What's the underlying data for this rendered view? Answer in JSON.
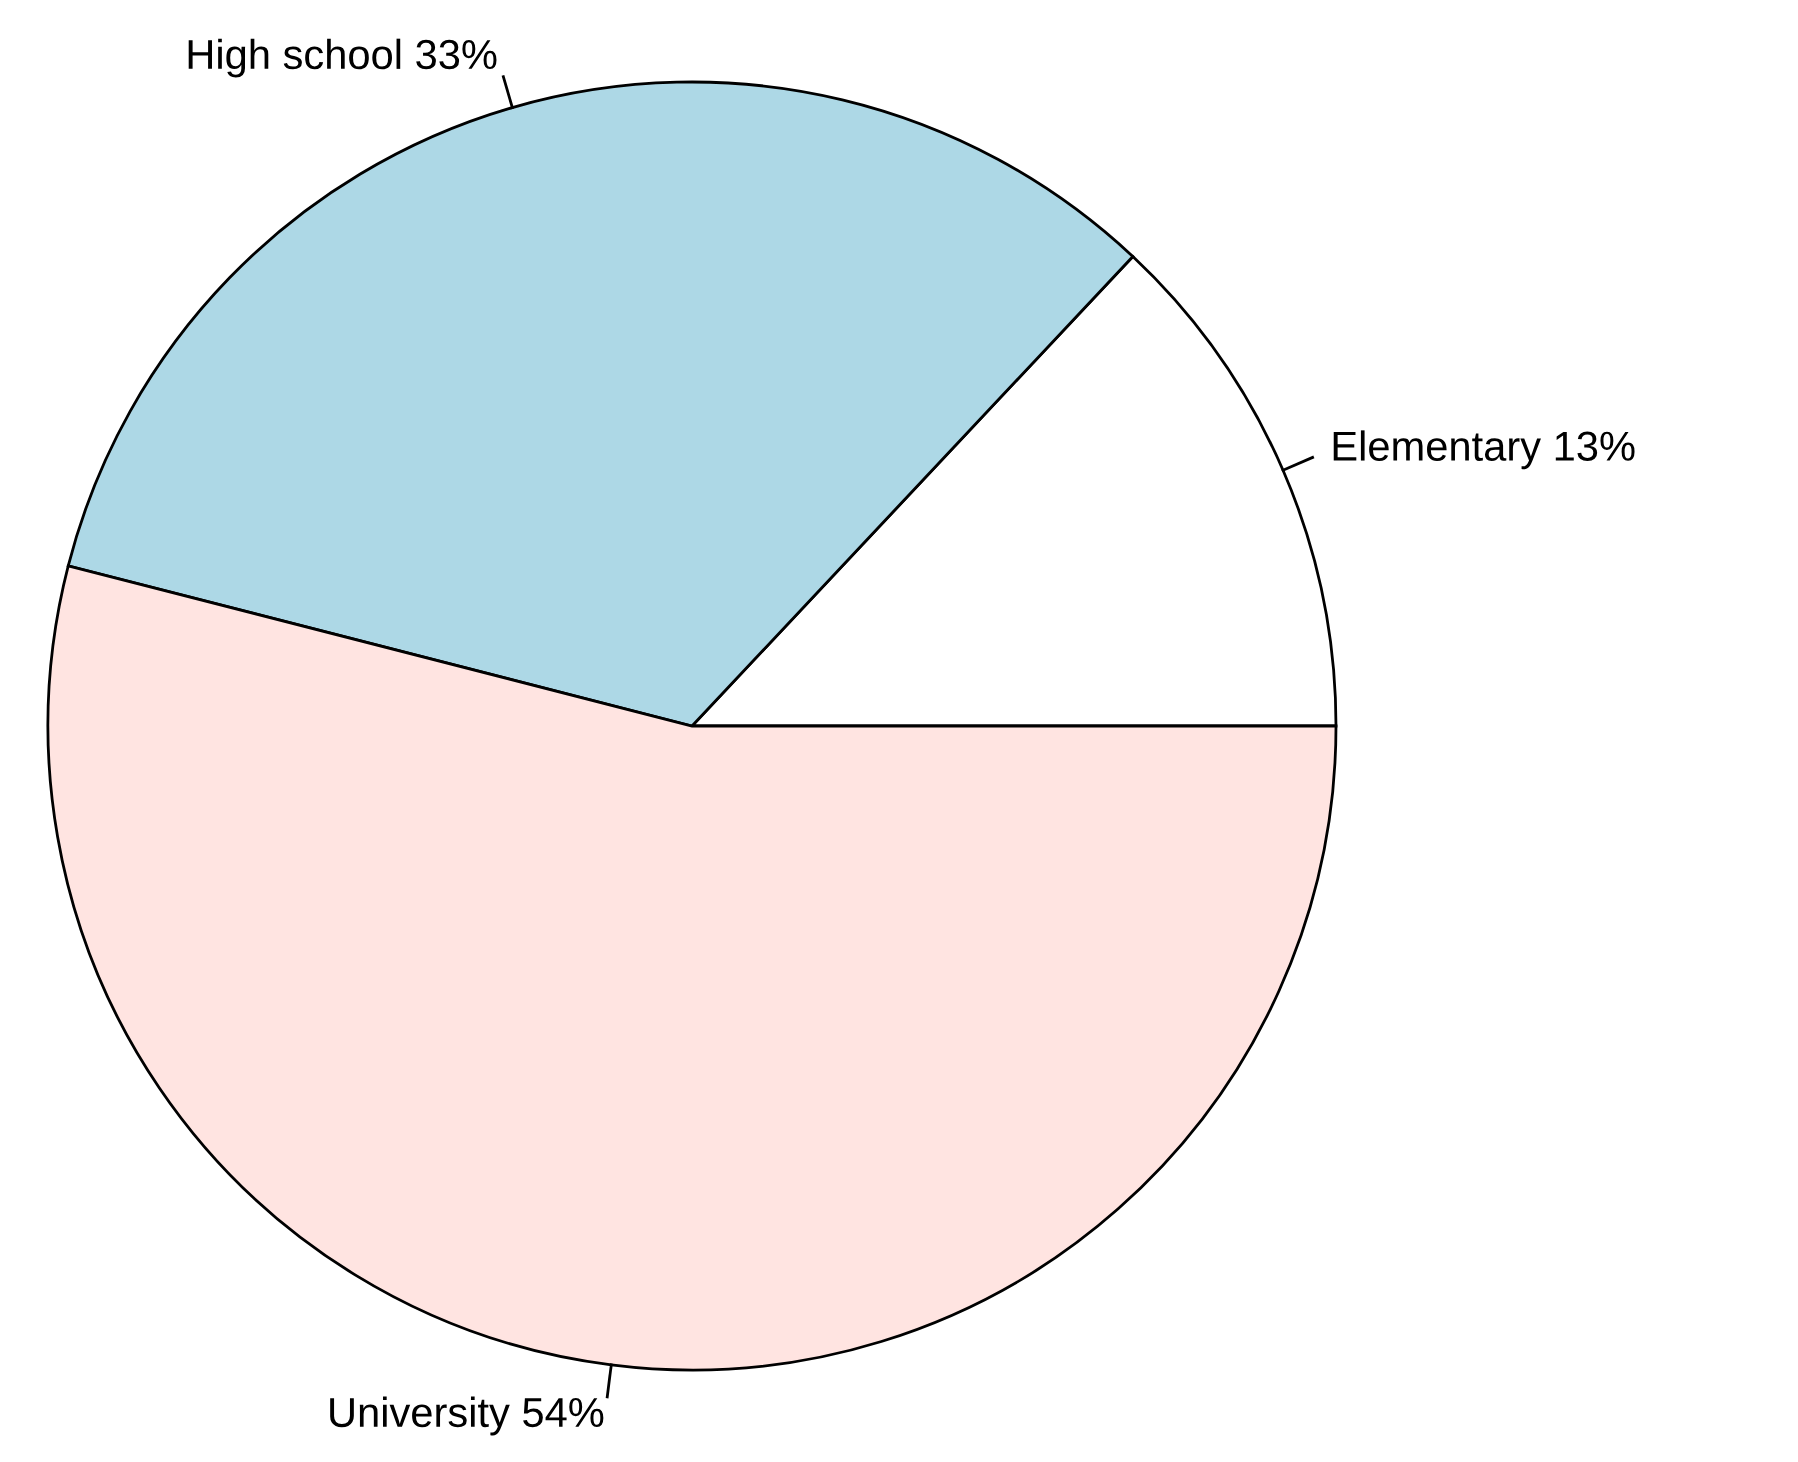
{
  "chart_data": {
    "type": "pie",
    "categories": [
      "Elementary",
      "High school",
      "University"
    ],
    "values": [
      13,
      33,
      54
    ],
    "value_labels": [
      "13%",
      "33%",
      "54%"
    ],
    "colors": [
      "#ffffff",
      "#add8e6",
      "#ffe4e1"
    ]
  }
}
